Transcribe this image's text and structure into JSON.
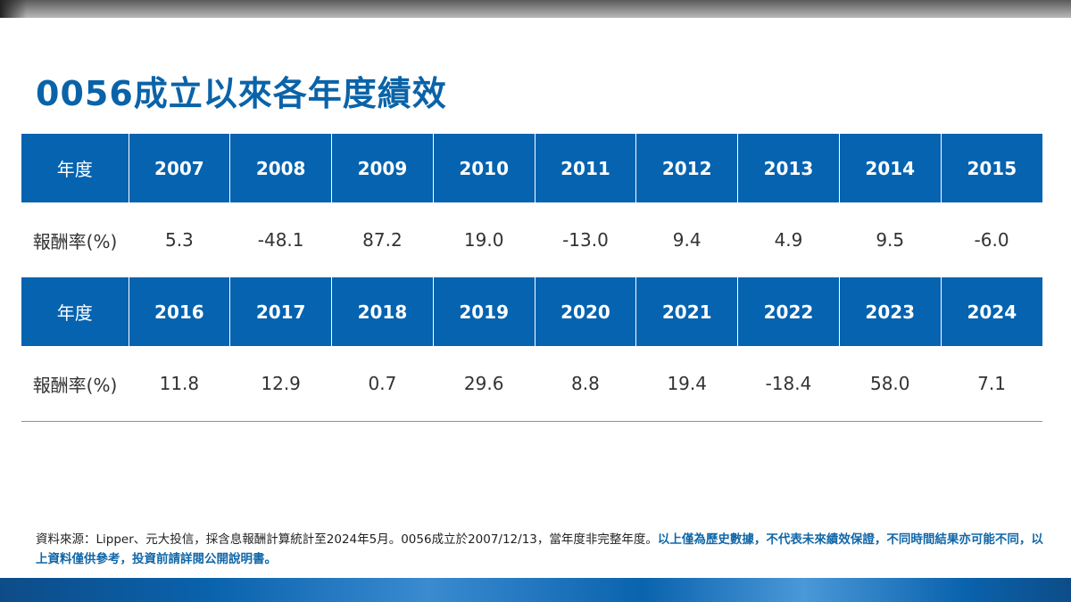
{
  "title": "0056成立以來各年度績效",
  "table": {
    "rows": [
      {
        "header_label": "年度",
        "years": [
          "2007",
          "2008",
          "2009",
          "2010",
          "2011",
          "2012",
          "2013",
          "2014",
          "2015"
        ],
        "value_label": "報酬率(%)",
        "values": [
          "5.3",
          "-48.1",
          "87.2",
          "19.0",
          "-13.0",
          "9.4",
          "4.9",
          "9.5",
          "-6.0"
        ]
      },
      {
        "header_label": "年度",
        "years": [
          "2016",
          "2017",
          "2018",
          "2019",
          "2020",
          "2021",
          "2022",
          "2023",
          "2024"
        ],
        "value_label": "報酬率(%)",
        "values": [
          "11.8",
          "12.9",
          "0.7",
          "29.6",
          "8.8",
          "19.4",
          "-18.4",
          "58.0",
          "7.1"
        ]
      }
    ]
  },
  "note": {
    "normal": "資料來源：Lipper、元大投信，採含息報酬計算統計至2024年5月。0056成立於2007/12/13，當年度非完整年度。",
    "highlight": "以上僅為歷史數據，不代表未來績效保證，不同時間結果亦可能不同，以上資料僅供參考，投資前請詳閱公開說明書。"
  },
  "colors": {
    "header_bg": "#0563b0",
    "title": "#0a63a8"
  }
}
